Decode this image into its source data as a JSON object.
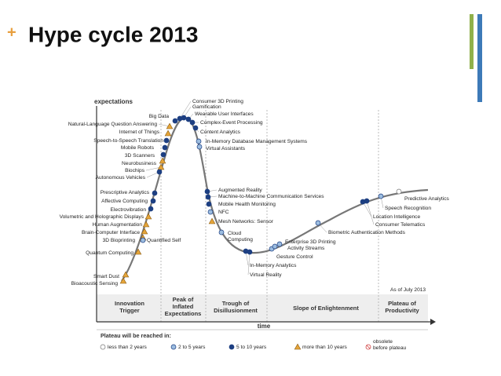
{
  "header": {
    "mark": "+",
    "title": "Hype cycle 2013"
  },
  "axes": {
    "y_label": "expectations",
    "x_label": "time"
  },
  "as_of": "As of July 2013",
  "phases": [
    [
      "Innovation",
      "Trigger"
    ],
    [
      "Peak of",
      "Inflated",
      "Expectations"
    ],
    [
      "Trough of",
      "Disillusionment"
    ],
    [
      "Slope of Enlightenment"
    ],
    [
      "Plateau of",
      "Productivity"
    ]
  ],
  "nodes": [
    {
      "label": "Consumer 3D Printing",
      "plateau": "dark"
    },
    {
      "label": "Gamification",
      "plateau": "dark"
    },
    {
      "label": "Wearable User Interfaces",
      "plateau": "dark"
    },
    {
      "label": "Complex-Event Processing",
      "plateau": "dark"
    },
    {
      "label": "Content Analytics",
      "plateau": "dark"
    },
    {
      "label": "Big Data",
      "plateau": "dark"
    },
    {
      "label": "Natural-Language Question Answering",
      "plateau": "triangle"
    },
    {
      "label": "Internet of Things",
      "plateau": "triangle"
    },
    {
      "label": "Speech-to-Speech Translation",
      "plateau": "dark"
    },
    {
      "label": "Mobile Robots",
      "plateau": "dark"
    },
    {
      "label": "3D Scanners",
      "plateau": "dark"
    },
    {
      "label": "Neurobusiness",
      "plateau": "triangle"
    },
    {
      "label": "Biochips",
      "plateau": "triangle"
    },
    {
      "label": "Autonomous Vehicles",
      "plateau": "dark"
    },
    {
      "label": "Prescriptive Analytics",
      "plateau": "dark"
    },
    {
      "label": "Affective Computing",
      "plateau": "dark"
    },
    {
      "label": "Electrovibration",
      "plateau": "dark"
    },
    {
      "label": "Volumetric and Holographic Displays",
      "plateau": "triangle"
    },
    {
      "label": "Human Augmentation",
      "plateau": "triangle"
    },
    {
      "label": "Brain-Computer Interface",
      "plateau": "triangle"
    },
    {
      "label": "3D Bioprinting",
      "plateau": "triangle"
    },
    {
      "label": "Quantified Self",
      "plateau": "light"
    },
    {
      "label": "Quantum Computing",
      "plateau": "triangle"
    },
    {
      "label": "Smart Dust",
      "plateau": "triangle"
    },
    {
      "label": "Bioacoustic Sensing",
      "plateau": "triangle"
    },
    {
      "label": "In-Memory Database Management Systems",
      "plateau": "light"
    },
    {
      "label": "Virtual Assistants",
      "plateau": "light"
    },
    {
      "label": "Augmented Reality",
      "plateau": "dark"
    },
    {
      "label": "Machine-to-Machine Communication Services",
      "plateau": "dark"
    },
    {
      "label": "Mobile Health Monitoring",
      "plateau": "dark"
    },
    {
      "label": "NFC",
      "plateau": "light"
    },
    {
      "label": "Mesh Networks: Sensor",
      "plateau": "triangle"
    },
    {
      "label": [
        "Cloud",
        "Computing"
      ],
      "plateau": "light"
    },
    {
      "label": "In-Memory Analytics",
      "plateau": "dark"
    },
    {
      "label": "Virtual Reality",
      "plateau": "dark"
    },
    {
      "label": "Gesture Control",
      "plateau": "light"
    },
    {
      "label": "Activity Streams",
      "plateau": "light"
    },
    {
      "label": "Enterprise 3D Printing",
      "plateau": "light"
    },
    {
      "label": "Biometric Authentication Methods",
      "plateau": "light"
    },
    {
      "label": "Location Intelligence",
      "plateau": "dark"
    },
    {
      "label": "Consumer Telematics",
      "plateau": "dark"
    },
    {
      "label": "Speech Recognition",
      "plateau": "light"
    },
    {
      "label": "Predictive Analytics",
      "plateau": "white"
    }
  ],
  "legend": {
    "title": "Plateau will be reached in:",
    "items": [
      {
        "symbol": "white",
        "label": "less than 2 years"
      },
      {
        "symbol": "light",
        "label": "2 to 5 years"
      },
      {
        "symbol": "dark",
        "label": "5 to 10 years"
      },
      {
        "symbol": "triangle",
        "label": "more than 10 years"
      },
      {
        "symbol": "obsolete",
        "label": [
          "obsolete",
          "before plateau"
        ]
      }
    ]
  }
}
